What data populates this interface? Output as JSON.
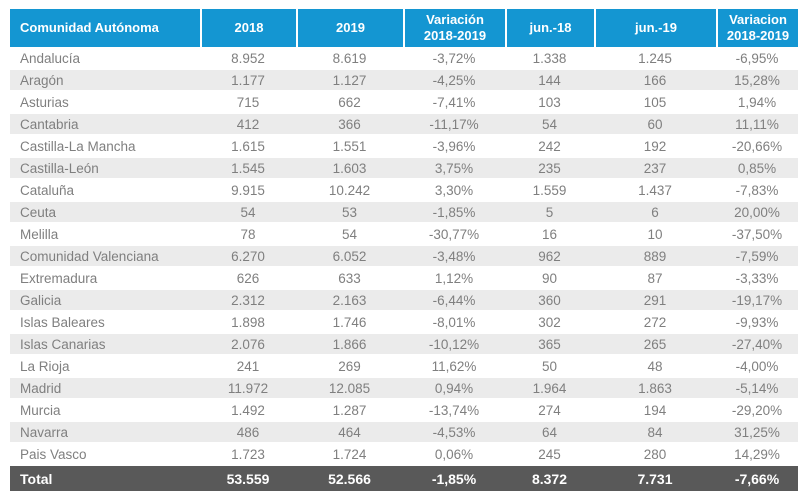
{
  "colors": {
    "header_bg": "#1496d2",
    "stripe_row_bg": "#ebebeb",
    "total_row_bg": "#595959",
    "body_text": "#7f7f7f",
    "header_text": "#ffffff"
  },
  "chart_data": {
    "type": "table",
    "columns": [
      "Comunidad Autónoma",
      "2018",
      "2019",
      "Variación 2018-2019",
      "jun.-18",
      "jun.-19",
      "Variacion 2018-2019"
    ],
    "rows": [
      [
        "Andalucía",
        "8.952",
        "8.619",
        "-3,72%",
        "1.338",
        "1.245",
        "-6,95%"
      ],
      [
        "Aragón",
        "1.177",
        "1.127",
        "-4,25%",
        "144",
        "166",
        "15,28%"
      ],
      [
        "Asturias",
        "715",
        "662",
        "-7,41%",
        "103",
        "105",
        "1,94%"
      ],
      [
        "Cantabria",
        "412",
        "366",
        "-11,17%",
        "54",
        "60",
        "11,11%"
      ],
      [
        "Castilla-La Mancha",
        "1.615",
        "1.551",
        "-3,96%",
        "242",
        "192",
        "-20,66%"
      ],
      [
        "Castilla-León",
        "1.545",
        "1.603",
        "3,75%",
        "235",
        "237",
        "0,85%"
      ],
      [
        "Cataluña",
        "9.915",
        "10.242",
        "3,30%",
        "1.559",
        "1.437",
        "-7,83%"
      ],
      [
        "Ceuta",
        "54",
        "53",
        "-1,85%",
        "5",
        "6",
        "20,00%"
      ],
      [
        "Melilla",
        "78",
        "54",
        "-30,77%",
        "16",
        "10",
        "-37,50%"
      ],
      [
        "Comunidad Valenciana",
        "6.270",
        "6.052",
        "-3,48%",
        "962",
        "889",
        "-7,59%"
      ],
      [
        "Extremadura",
        "626",
        "633",
        "1,12%",
        "90",
        "87",
        "-3,33%"
      ],
      [
        "Galicia",
        "2.312",
        "2.163",
        "-6,44%",
        "360",
        "291",
        "-19,17%"
      ],
      [
        "Islas Baleares",
        "1.898",
        "1.746",
        "-8,01%",
        "302",
        "272",
        "-9,93%"
      ],
      [
        "Islas Canarias",
        "2.076",
        "1.866",
        "-10,12%",
        "365",
        "265",
        "-27,40%"
      ],
      [
        "La Rioja",
        "241",
        "269",
        "11,62%",
        "50",
        "48",
        "-4,00%"
      ],
      [
        "Madrid",
        "11.972",
        "12.085",
        "0,94%",
        "1.964",
        "1.863",
        "-5,14%"
      ],
      [
        "Murcia",
        "1.492",
        "1.287",
        "-13,74%",
        "274",
        "194",
        "-29,20%"
      ],
      [
        "Navarra",
        "486",
        "464",
        "-4,53%",
        "64",
        "84",
        "31,25%"
      ],
      [
        "Pais Vasco",
        "1.723",
        "1.724",
        "0,06%",
        "245",
        "280",
        "14,29%"
      ]
    ],
    "total": [
      "Total",
      "53.559",
      "52.566",
      "-1,85%",
      "8.372",
      "7.731",
      "-7,66%"
    ]
  }
}
